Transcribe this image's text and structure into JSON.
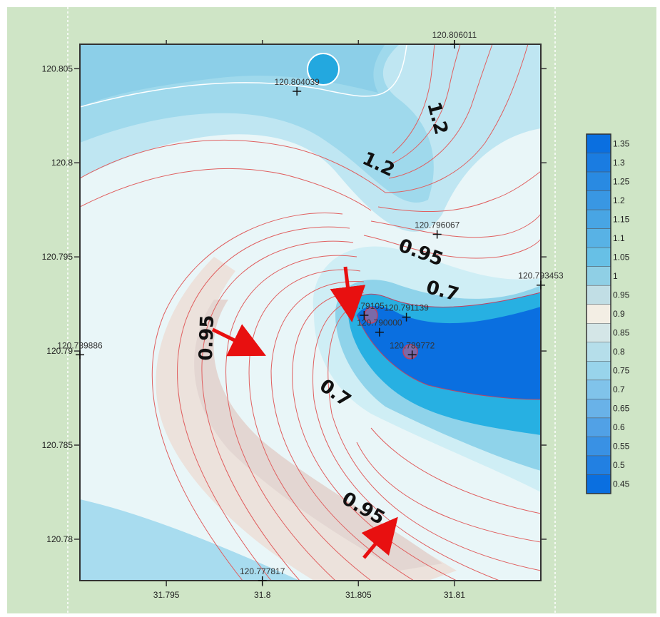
{
  "chart_data": {
    "type": "contour",
    "x_ticks": [
      "31.795",
      "31.8",
      "31.805",
      "31.81"
    ],
    "x_tick_values": [
      31.795,
      31.8,
      31.805,
      31.81
    ],
    "y_ticks": [
      "120.805",
      "120.8",
      "120.795",
      "120.79",
      "120.785",
      "120.78"
    ],
    "y_tick_values": [
      120.805,
      120.8,
      120.795,
      120.79,
      120.785,
      120.78
    ],
    "xlim": [
      31.7905,
      31.8145
    ],
    "ylim": [
      120.7778,
      120.8063
    ],
    "legend_levels": [
      "1.35",
      "1.3",
      "1.25",
      "1.2",
      "1.15",
      "1.1",
      "1.05",
      "1",
      "0.95",
      "0.9",
      "0.85",
      "0.8",
      "0.75",
      "0.7",
      "0.65",
      "0.6",
      "0.55",
      "0.5",
      "0.45"
    ],
    "contour_labels": [
      "1.2",
      "1.2",
      "0.95",
      "0.7",
      "0.95",
      "0.7",
      "0.95"
    ],
    "wells": [
      {
        "label": "120.806011",
        "x": 31.81,
        "y": 120.8063
      },
      {
        "label": "120.804039",
        "x": 31.8018,
        "y": 120.8038
      },
      {
        "label": "120.796067",
        "x": 31.8091,
        "y": 120.7962
      },
      {
        "label": "120.793453",
        "x": 31.8145,
        "y": 120.7935
      },
      {
        "label": "120.79105",
        "x": 31.8053,
        "y": 120.7919
      },
      {
        "label": "120.791139",
        "x": 31.8075,
        "y": 120.7918
      },
      {
        "label": "120.790000",
        "x": 31.8061,
        "y": 120.791
      },
      {
        "label": "120.789772",
        "x": 31.8078,
        "y": 120.7898
      },
      {
        "label": "120.789886",
        "x": 31.7905,
        "y": 120.7898
      },
      {
        "label": "120.777817",
        "x": 31.8,
        "y": 120.7778
      }
    ],
    "colors": {
      "frame_bg": "#cfe5c6",
      "low": "#0a6fe0",
      "high": "#6cc4e6",
      "mid": "#f3eee4",
      "contour_line": "#e06060",
      "arrow": "#e81010"
    }
  }
}
